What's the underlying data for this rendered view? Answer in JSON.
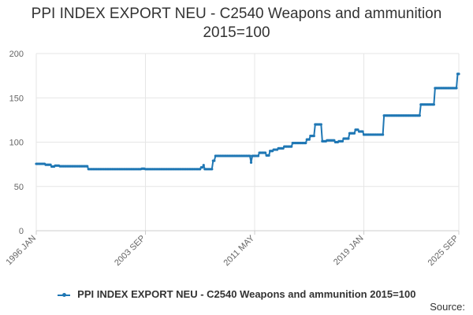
{
  "title_line1": "PPI INDEX EXPORT NEU - C2540 Weapons and ammunition",
  "title_line2": "2015=100",
  "source_label": "Source:",
  "colors": {
    "series": "#1f77b4",
    "grid": "#e6e6e6",
    "axis": "#cccccc",
    "tick": "#666666"
  },
  "chart_data": {
    "type": "line",
    "title": "PPI INDEX EXPORT NEU - C2540 Weapons and ammunition 2015=100",
    "xlabel": "",
    "ylabel": "",
    "ylim": [
      0,
      200
    ],
    "yticks": [
      0,
      50,
      100,
      150,
      200
    ],
    "xlim": [
      "1996 JAN",
      "2025 SEP"
    ],
    "xticks": [
      "1996 JAN",
      "2003 SEP",
      "2011 MAY",
      "2019 JAN",
      "2025 SEP"
    ],
    "grid": true,
    "legend_position": "bottom",
    "series": [
      {
        "name": "PPI INDEX EXPORT NEU - C2540 Weapons and ammunition 2015=100",
        "color": "#1f77b4",
        "step_points": [
          [
            "1996-01",
            75.5
          ],
          [
            "1996-09",
            74.5
          ],
          [
            "1997-02",
            72.5
          ],
          [
            "1997-05",
            73.5
          ],
          [
            "1997-09",
            72.8
          ],
          [
            "1999-09",
            69.5
          ],
          [
            "2003-06",
            70
          ],
          [
            "2003-09",
            69.5
          ],
          [
            "2007-08",
            71.5
          ],
          [
            "2007-10",
            74
          ],
          [
            "2007-11",
            69.5
          ],
          [
            "2008-06",
            79
          ],
          [
            "2008-08",
            84.5
          ],
          [
            "2011-02",
            77
          ],
          [
            "2011-03",
            84.5
          ],
          [
            "2011-09",
            88
          ],
          [
            "2012-03",
            85
          ],
          [
            "2012-06",
            90
          ],
          [
            "2012-09",
            91.5
          ],
          [
            "2013-01",
            93
          ],
          [
            "2013-06",
            95
          ],
          [
            "2014-01",
            99
          ],
          [
            "2015-01",
            103
          ],
          [
            "2015-04",
            107
          ],
          [
            "2015-08",
            120
          ],
          [
            "2016-02",
            101
          ],
          [
            "2016-06",
            102
          ],
          [
            "2017-01",
            100
          ],
          [
            "2017-04",
            101
          ],
          [
            "2017-08",
            104
          ],
          [
            "2018-01",
            110
          ],
          [
            "2018-06",
            114
          ],
          [
            "2018-09",
            112
          ],
          [
            "2019-01",
            108.5
          ],
          [
            "2020-06",
            130
          ],
          [
            "2023-01",
            142.5
          ],
          [
            "2024-01",
            161
          ],
          [
            "2025-08",
            177
          ],
          [
            "2025-09",
            177
          ]
        ]
      }
    ]
  }
}
